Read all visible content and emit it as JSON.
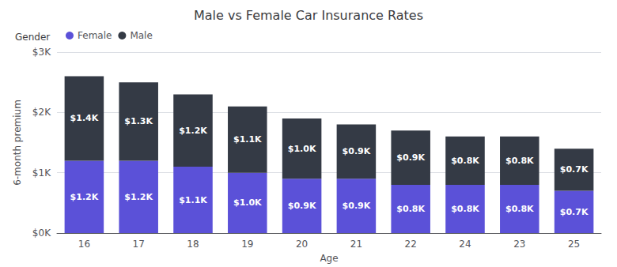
{
  "chart_data": {
    "type": "bar",
    "title": "Male vs Female Car Insurance Rates",
    "xlabel": "Age",
    "ylabel": "6-month premium",
    "categories": [
      "16",
      "17",
      "18",
      "19",
      "20",
      "21",
      "22",
      "24",
      "23",
      "25"
    ],
    "series": [
      {
        "name": "Female",
        "color": "#5b51d8",
        "values": [
          1200,
          1200,
          1100,
          1000,
          900,
          900,
          800,
          800,
          800,
          700
        ],
        "value_labels": [
          "$1.2K",
          "$1.2K",
          "$1.1K",
          "$1.0K",
          "$0.9K",
          "$0.9K",
          "$0.8K",
          "$0.8K",
          "$0.8K",
          "$0.7K"
        ]
      },
      {
        "name": "Male",
        "color": "#343a45",
        "values": [
          1400,
          1300,
          1200,
          1100,
          1000,
          900,
          900,
          800,
          800,
          700
        ],
        "value_labels": [
          "$1.4K",
          "$1.3K",
          "$1.2K",
          "$1.1K",
          "$1.0K",
          "$0.9K",
          "$0.9K",
          "$0.8K",
          "$0.8K",
          "$0.7K"
        ]
      }
    ],
    "stacked": true,
    "data_labels": true,
    "ylim": [
      0,
      3000
    ],
    "yticks": [
      {
        "value": 0,
        "label": "$0K"
      },
      {
        "value": 1000,
        "label": "$1K"
      },
      {
        "value": 2000,
        "label": "$2K"
      },
      {
        "value": 3000,
        "label": "$3K"
      }
    ],
    "grid": true,
    "legend": "upper left",
    "legend_title": "Gender"
  }
}
